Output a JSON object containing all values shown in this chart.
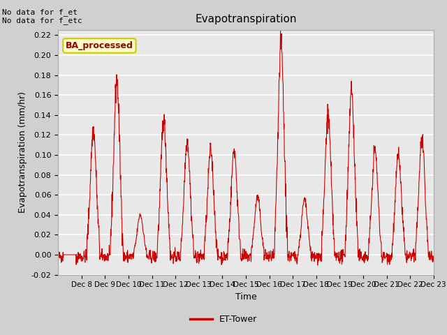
{
  "title": "Evapotranspiration",
  "ylabel": "Evapotranspiration (mm/hr)",
  "xlabel": "Time",
  "ylim": [
    -0.02,
    0.225
  ],
  "plot_bg_color": "#e8e8e8",
  "fig_bg_color": "#d0d0d0",
  "line_color": "#cc0000",
  "legend_label": "ET-Tower",
  "annotation_text": "No data for f_et\nNo data for f_etc",
  "box_label": "BA_processed",
  "box_facecolor": "#ffffcc",
  "box_edgecolor": "#cccc00",
  "box_text_color": "#990000",
  "yticks": [
    -0.02,
    0.0,
    0.02,
    0.04,
    0.06,
    0.08,
    0.1,
    0.12,
    0.14,
    0.16,
    0.18,
    0.2,
    0.22
  ],
  "xtick_labels": [
    "Dec 8",
    "Dec 9",
    "Dec 10",
    "Dec 11",
    "Dec 12",
    "Dec 13",
    "Dec 14",
    "Dec 15",
    "Dec 16",
    "Dec 17",
    "Dec 18",
    "Dec 19",
    "Dec 20",
    "Dec 21",
    "Dec 22",
    "Dec 23"
  ],
  "peaks": [
    0.0,
    0.125,
    0.175,
    0.04,
    0.135,
    0.115,
    0.105,
    0.105,
    0.058,
    0.21,
    0.055,
    0.14,
    0.165,
    0.105,
    0.1,
    0.115
  ],
  "num_days": 16
}
